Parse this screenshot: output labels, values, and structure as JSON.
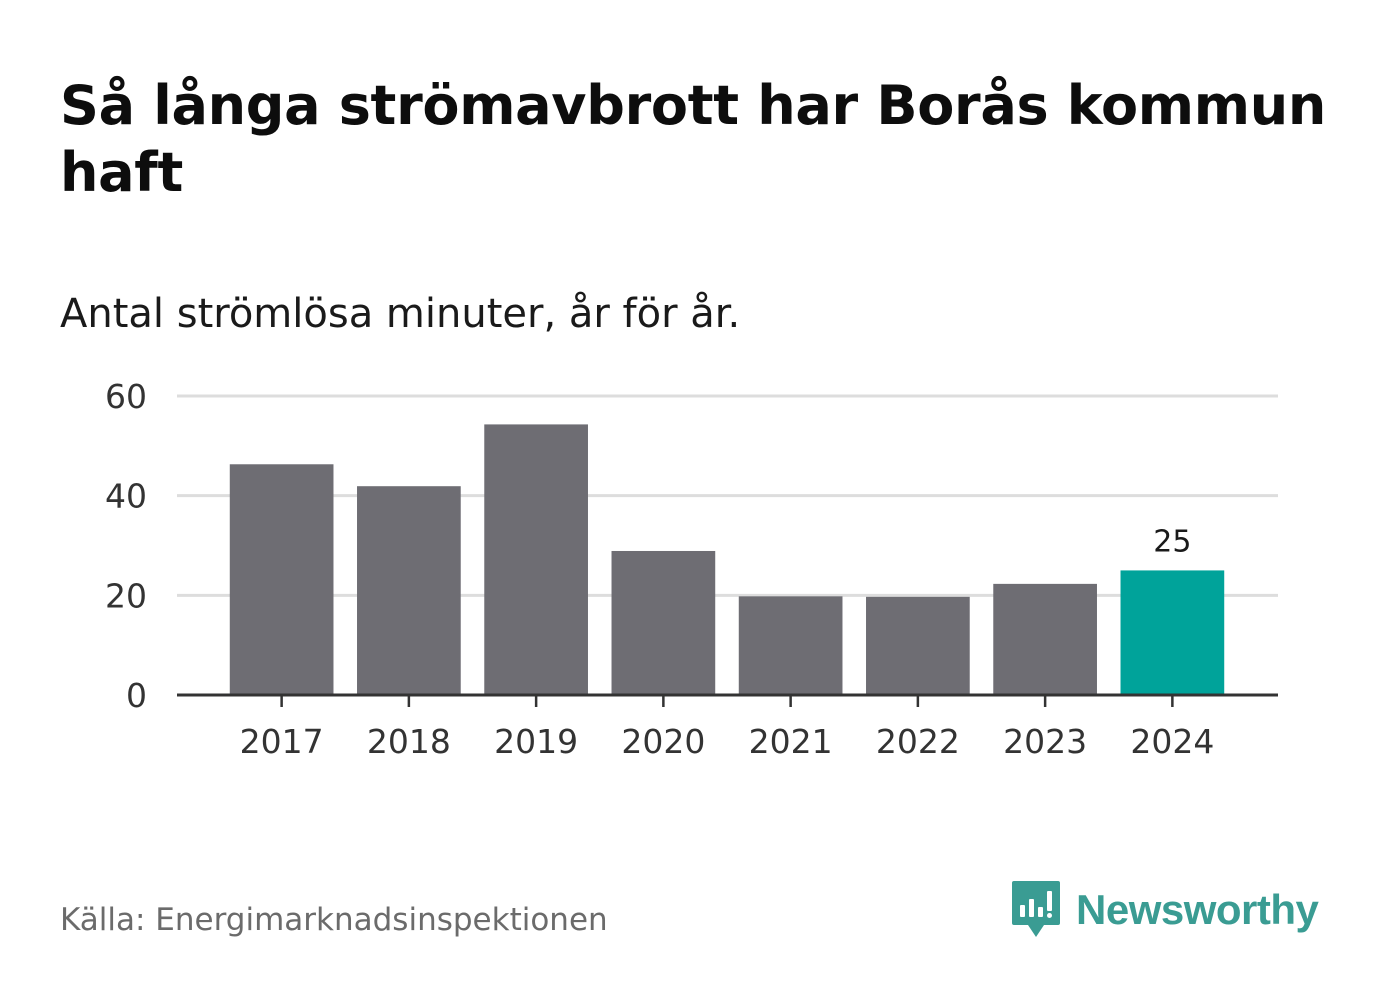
{
  "title": "Så långa strömavbrott har Borås kommun haft",
  "subtitle": "Antal strömlösa minuter, år för år.",
  "source": "Källa: Energimarknadsinspektionen",
  "brand": {
    "name": "Newsworthy",
    "logo_icon": "newsworthy-bars-icon",
    "color": "#3a9c93"
  },
  "colors": {
    "bar": "#6e6d73",
    "highlight": "#00a39a",
    "grid": "#dddddd",
    "axis": "#333333",
    "tick_text": "#333333"
  },
  "chart_data": {
    "type": "bar",
    "title": "Så långa strömavbrott har Borås kommun haft",
    "subtitle": "Antal strömlösa minuter, år för år.",
    "xlabel": "",
    "ylabel": "",
    "categories": [
      "2017",
      "2018",
      "2019",
      "2020",
      "2021",
      "2022",
      "2023",
      "2024"
    ],
    "values": [
      46.3,
      41.9,
      54.3,
      28.9,
      19.8,
      19.7,
      22.3,
      25
    ],
    "highlight_index": 7,
    "data_labels": [
      {
        "index": 7,
        "text": "25"
      }
    ],
    "ylim": [
      0,
      60
    ],
    "yticks": [
      0,
      20,
      40,
      60
    ],
    "ytick_labels": [
      "0",
      "20",
      "40",
      "60"
    ],
    "grid": true,
    "legend": "none"
  }
}
